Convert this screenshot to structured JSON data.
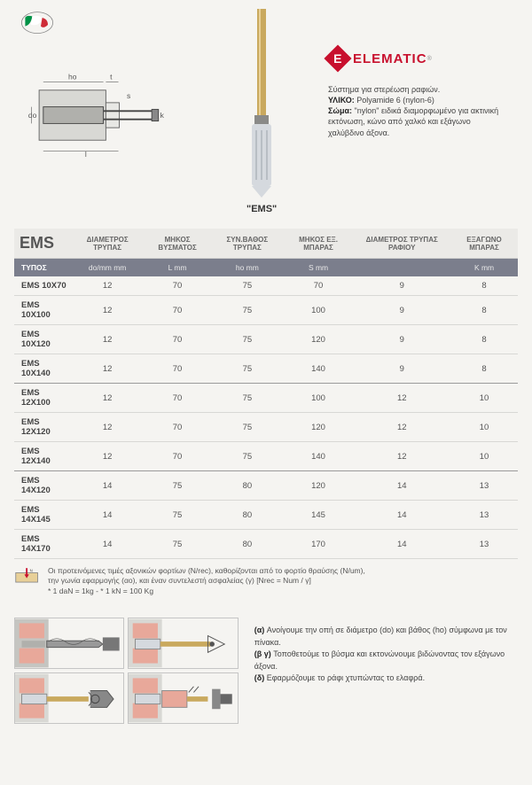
{
  "product_label": "\"EMS\"",
  "brand": {
    "e": "E",
    "name": "ELEMATIC",
    "r": "®"
  },
  "description": {
    "line1": "Σύστημα για στερέωση ραφιών.",
    "material_label": "ΥΛΙΚΟ:",
    "material": " Polyamide 6 (nylon-6)",
    "body_label": "Σώμα:",
    "body": " \"nylon\" ειδικά διαμορφωμένο για ακτινική εκτόνωση, κώνο από χαλκό και εξάγωνο χαλύβδινο άξονα."
  },
  "table": {
    "title": "EMS",
    "headers": [
      "ΔΙΑΜΕΤΡΟΣ ΤΡΥΠΑΣ",
      "ΜΗΚΟΣ ΒΥΣΜΑΤΟΣ",
      "ΣΥΝ.ΒΑΘΟΣ ΤΡΥΠΑΣ",
      "ΜΗΚΟΣ ΕΞ. ΜΠΑΡΑΣ",
      "ΔΙΑΜΕΤΡΟΣ ΤΡΥΠΑΣ ΡΑΦΙΟΥ",
      "ΕΞΑΓΩΝΟ ΜΠΑΡΑΣ"
    ],
    "units_label": "ΤΥΠΟΣ",
    "units": [
      "do/mm mm",
      "L mm",
      "ho mm",
      "S mm",
      "",
      "K mm"
    ],
    "rows": [
      {
        "type": "EMS 10X70",
        "v": [
          "12",
          "70",
          "75",
          "70",
          "9",
          "8"
        ]
      },
      {
        "type": "EMS 10X100",
        "v": [
          "12",
          "70",
          "75",
          "100",
          "9",
          "8"
        ]
      },
      {
        "type": "EMS 10X120",
        "v": [
          "12",
          "70",
          "75",
          "120",
          "9",
          "8"
        ]
      },
      {
        "type": "EMS 10X140",
        "v": [
          "12",
          "70",
          "75",
          "140",
          "9",
          "8"
        ],
        "sep": true
      },
      {
        "type": "EMS 12X100",
        "v": [
          "12",
          "70",
          "75",
          "100",
          "12",
          "10"
        ]
      },
      {
        "type": "EMS 12X120",
        "v": [
          "12",
          "70",
          "75",
          "120",
          "12",
          "10"
        ]
      },
      {
        "type": "EMS 12X140",
        "v": [
          "12",
          "70",
          "75",
          "140",
          "12",
          "10"
        ],
        "sep": true
      },
      {
        "type": "EMS 14X120",
        "v": [
          "14",
          "75",
          "80",
          "120",
          "14",
          "13"
        ]
      },
      {
        "type": "EMS 14X145",
        "v": [
          "14",
          "75",
          "80",
          "145",
          "14",
          "13"
        ]
      },
      {
        "type": "EMS 14X170",
        "v": [
          "14",
          "75",
          "80",
          "170",
          "14",
          "13"
        ]
      }
    ]
  },
  "note": {
    "l1": "Οι προτεινόμενες τιμές αξονικών φορτίων (N/rec), καθορίζονται από το φορτίο θραύσης (N/um),",
    "l2": "την γωνία εφαρμογής (αο), και έναν συντελεστή ασφαλείας (γ)    [Nrec = Num / γ]",
    "l3": "* 1 daN = 1kg  -  * 1 kN = 100 Kg"
  },
  "install": {
    "a_label": "(α) ",
    "a": "Ανοίγουμε την οπή σε διάμετρο (do) και βάθος (ho) σύμφωνα με τον πίνακα.",
    "bg_label": "(β γ) ",
    "bg": "Τοποθετούμε το βύσμα και εκτονώνουμε βιδώνοντας τον εξάγωνο άξονα.",
    "d_label": "(δ) ",
    "d": "Εφαρμόζουμε το ράφι χτυπώντας το ελαφρά."
  }
}
